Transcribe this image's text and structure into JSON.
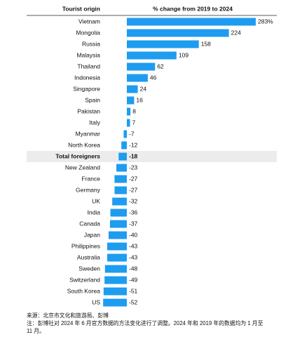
{
  "chart_data": {
    "type": "bar",
    "orientation": "horizontal",
    "category_header": "Tourist origin",
    "value_header": "% change from 2019 to 2024",
    "categories": [
      "Vietnam",
      "Mongolia",
      "Russia",
      "Malaysia",
      "Thailand",
      "Indonesia",
      "Singapore",
      "Spain",
      "Pakistan",
      "Italy",
      "Myanmar",
      "North Korea",
      "Total foreigners",
      "New Zealand",
      "France",
      "Germany",
      "UK",
      "India",
      "Canada",
      "Japan",
      "Philippines",
      "Australia",
      "Sweden",
      "Switzerland",
      "South Korea",
      "US"
    ],
    "values": [
      283,
      224,
      158,
      109,
      62,
      46,
      24,
      16,
      8,
      7,
      -7,
      -12,
      -18,
      -23,
      -27,
      -27,
      -32,
      -36,
      -37,
      -40,
      -43,
      -43,
      -48,
      -49,
      -51,
      -52
    ],
    "value_labels": [
      "283%",
      "224",
      "158",
      "109",
      "62",
      "46",
      "24",
      "16",
      "8",
      "7",
      "-7",
      "-12",
      "-18",
      "-23",
      "-27",
      "-27",
      "-32",
      "-36",
      "-37",
      "-40",
      "-43",
      "-43",
      "-48",
      "-49",
      "-51",
      "-52"
    ],
    "color": "#1e9cf0",
    "highlight_index": 12,
    "notes": [
      "来源：北京市文化和旅游局、彭博",
      "注：彭博社对 2024 年 6 月官方数据的方法变化进行了调整。2024 年和 2019 年的数据均为 1 月至",
      "11 月。"
    ]
  }
}
